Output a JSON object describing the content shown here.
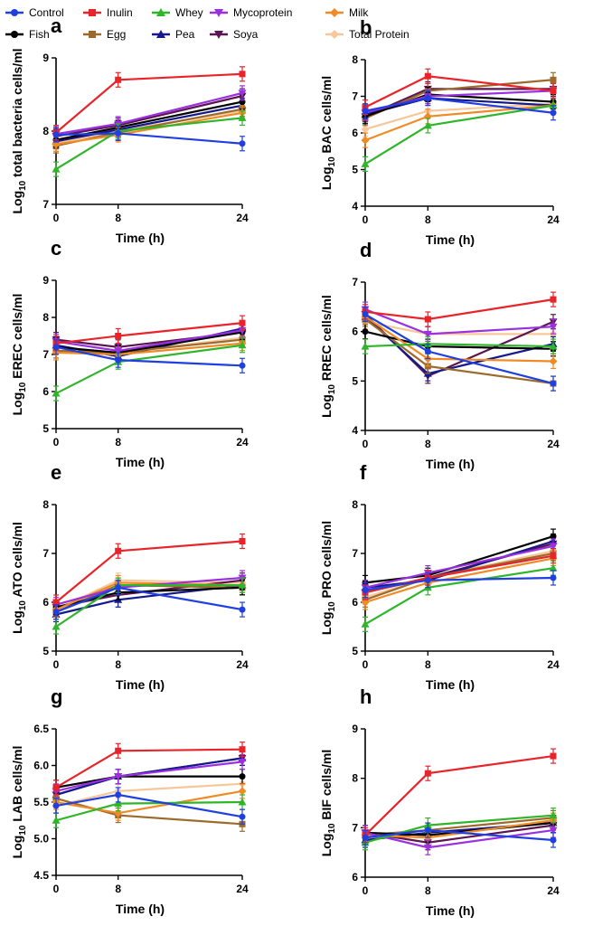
{
  "legend": [
    {
      "name": "Control",
      "color": "#1f3fe0",
      "marker": "circle"
    },
    {
      "name": "Inulin",
      "color": "#e8242a",
      "marker": "square"
    },
    {
      "name": "Whey",
      "color": "#2fb52a",
      "marker": "triangle-up"
    },
    {
      "name": "Mycoprotein",
      "color": "#9b30e0",
      "marker": "triangle-down"
    },
    {
      "name": "Milk",
      "color": "#f08a24",
      "marker": "diamond"
    },
    {
      "name": "Fish",
      "color": "#000000",
      "marker": "circle"
    },
    {
      "name": "Egg",
      "color": "#9c6b2c",
      "marker": "square"
    },
    {
      "name": "Pea",
      "color": "#141a8c",
      "marker": "triangle-up"
    },
    {
      "name": "Soya",
      "color": "#5b1550",
      "marker": "triangle-down"
    },
    {
      "name": "Total Protein",
      "color": "#f7c79a",
      "marker": "diamond"
    }
  ],
  "chart_data": [
    {
      "panel": "a",
      "type": "line",
      "ylabel_prefix": "Log",
      "ylabel_sub": "10",
      "ylabel_rest": " total bacteria cells/ml",
      "xlabel": "Time (h)",
      "x": [
        0,
        8,
        24
      ],
      "ylim": [
        7,
        9
      ],
      "yticks": [
        7,
        8,
        9
      ],
      "series": [
        {
          "name": "Control",
          "values": [
            7.95,
            7.97,
            7.83
          ]
        },
        {
          "name": "Inulin",
          "values": [
            7.98,
            8.7,
            8.78
          ]
        },
        {
          "name": "Whey",
          "values": [
            7.48,
            8.0,
            8.18
          ]
        },
        {
          "name": "Mycoprotein",
          "values": [
            7.96,
            8.1,
            8.52
          ]
        },
        {
          "name": "Milk",
          "values": [
            7.82,
            7.95,
            8.25
          ]
        },
        {
          "name": "Fish",
          "values": [
            7.88,
            8.05,
            8.4
          ]
        },
        {
          "name": "Egg",
          "values": [
            7.8,
            7.98,
            8.3
          ]
        },
        {
          "name": "Pea",
          "values": [
            7.86,
            8.02,
            8.35
          ]
        },
        {
          "name": "Soya",
          "values": [
            7.93,
            8.08,
            8.48
          ]
        },
        {
          "name": "Total Protein",
          "values": [
            7.84,
            8.0,
            8.28
          ]
        }
      ]
    },
    {
      "panel": "b",
      "type": "line",
      "ylabel_prefix": "Log",
      "ylabel_sub": "10",
      "ylabel_rest": " BAC cells/ml",
      "xlabel": "Time (h)",
      "x": [
        0,
        8,
        24
      ],
      "ylim": [
        4,
        8
      ],
      "yticks": [
        4,
        5,
        6,
        7,
        8
      ],
      "series": [
        {
          "name": "Control",
          "values": [
            6.6,
            6.95,
            6.55
          ]
        },
        {
          "name": "Inulin",
          "values": [
            6.7,
            7.55,
            7.15
          ]
        },
        {
          "name": "Whey",
          "values": [
            5.15,
            6.2,
            6.75
          ]
        },
        {
          "name": "Mycoprotein",
          "values": [
            6.55,
            7.0,
            7.15
          ]
        },
        {
          "name": "Milk",
          "values": [
            5.8,
            6.45,
            6.75
          ]
        },
        {
          "name": "Fish",
          "values": [
            6.45,
            7.05,
            6.85
          ]
        },
        {
          "name": "Egg",
          "values": [
            6.4,
            7.15,
            7.45
          ]
        },
        {
          "name": "Pea",
          "values": [
            6.5,
            6.95,
            6.75
          ]
        },
        {
          "name": "Soya",
          "values": [
            6.45,
            7.2,
            7.2
          ]
        },
        {
          "name": "Total Protein",
          "values": [
            6.1,
            6.6,
            6.8
          ]
        }
      ]
    },
    {
      "panel": "c",
      "type": "line",
      "ylabel_prefix": "Log",
      "ylabel_sub": "10",
      "ylabel_rest": " EREC cells/ml",
      "xlabel": "Time (h)",
      "x": [
        0,
        8,
        24
      ],
      "ylim": [
        5,
        9
      ],
      "yticks": [
        5,
        6,
        7,
        8,
        9
      ],
      "series": [
        {
          "name": "Control",
          "values": [
            7.2,
            6.85,
            6.7
          ]
        },
        {
          "name": "Inulin",
          "values": [
            7.3,
            7.5,
            7.85
          ]
        },
        {
          "name": "Whey",
          "values": [
            5.95,
            6.8,
            7.25
          ]
        },
        {
          "name": "Mycoprotein",
          "values": [
            7.35,
            7.1,
            7.65
          ]
        },
        {
          "name": "Milk",
          "values": [
            7.05,
            7.0,
            7.3
          ]
        },
        {
          "name": "Fish",
          "values": [
            7.2,
            7.05,
            7.6
          ]
        },
        {
          "name": "Egg",
          "values": [
            7.1,
            7.05,
            7.4
          ]
        },
        {
          "name": "Pea",
          "values": [
            7.25,
            6.95,
            7.7
          ]
        },
        {
          "name": "Soya",
          "values": [
            7.4,
            7.2,
            7.6
          ]
        },
        {
          "name": "Total Protein",
          "values": [
            7.1,
            7.05,
            7.45
          ]
        }
      ]
    },
    {
      "panel": "d",
      "type": "line",
      "ylabel_prefix": "Log",
      "ylabel_sub": "10",
      "ylabel_rest": " RREC cells/ml",
      "xlabel": "Time (h)",
      "x": [
        0,
        8,
        24
      ],
      "ylim": [
        4,
        7
      ],
      "yticks": [
        4,
        5,
        6,
        7
      ],
      "series": [
        {
          "name": "Control",
          "values": [
            6.35,
            5.6,
            4.95
          ]
        },
        {
          "name": "Inulin",
          "values": [
            6.4,
            6.25,
            6.65
          ]
        },
        {
          "name": "Whey",
          "values": [
            5.7,
            5.75,
            5.7
          ]
        },
        {
          "name": "Mycoprotein",
          "values": [
            6.45,
            5.95,
            6.1
          ]
        },
        {
          "name": "Milk",
          "values": [
            6.3,
            5.45,
            5.4
          ]
        },
        {
          "name": "Fish",
          "values": [
            6.0,
            5.7,
            5.65
          ]
        },
        {
          "name": "Egg",
          "values": [
            6.25,
            5.3,
            4.95
          ]
        },
        {
          "name": "Pea",
          "values": [
            6.3,
            5.15,
            5.75
          ]
        },
        {
          "name": "Soya",
          "values": [
            6.35,
            5.1,
            6.2
          ]
        },
        {
          "name": "Total Protein",
          "values": [
            6.2,
            5.95,
            5.95
          ]
        }
      ]
    },
    {
      "panel": "e",
      "type": "line",
      "ylabel_prefix": "Log",
      "ylabel_sub": "10",
      "ylabel_rest": " ATO cells/ml",
      "xlabel": "Time (h)",
      "x": [
        0,
        8,
        24
      ],
      "ylim": [
        5,
        8
      ],
      "yticks": [
        5,
        6,
        7,
        8
      ],
      "series": [
        {
          "name": "Control",
          "values": [
            5.8,
            6.3,
            5.85
          ]
        },
        {
          "name": "Inulin",
          "values": [
            6.0,
            7.05,
            7.25
          ]
        },
        {
          "name": "Whey",
          "values": [
            5.5,
            6.35,
            6.35
          ]
        },
        {
          "name": "Mycoprotein",
          "values": [
            5.95,
            6.3,
            6.5
          ]
        },
        {
          "name": "Milk",
          "values": [
            5.85,
            6.4,
            6.35
          ]
        },
        {
          "name": "Fish",
          "values": [
            5.9,
            6.2,
            6.3
          ]
        },
        {
          "name": "Egg",
          "values": [
            5.8,
            6.35,
            6.3
          ]
        },
        {
          "name": "Pea",
          "values": [
            5.75,
            6.05,
            6.35
          ]
        },
        {
          "name": "Soya",
          "values": [
            5.9,
            6.15,
            6.45
          ]
        },
        {
          "name": "Total Protein",
          "values": [
            5.85,
            6.45,
            6.4
          ]
        }
      ]
    },
    {
      "panel": "f",
      "type": "line",
      "ylabel_prefix": "Log",
      "ylabel_sub": "10",
      "ylabel_rest": " PRO cells/ml",
      "xlabel": "Time (h)",
      "x": [
        0,
        8,
        24
      ],
      "ylim": [
        5,
        8
      ],
      "yticks": [
        5,
        6,
        7,
        8
      ],
      "series": [
        {
          "name": "Control",
          "values": [
            6.25,
            6.45,
            6.5
          ]
        },
        {
          "name": "Inulin",
          "values": [
            6.2,
            6.5,
            6.95
          ]
        },
        {
          "name": "Whey",
          "values": [
            5.55,
            6.3,
            6.7
          ]
        },
        {
          "name": "Mycoprotein",
          "values": [
            6.3,
            6.6,
            7.15
          ]
        },
        {
          "name": "Milk",
          "values": [
            6.0,
            6.4,
            6.9
          ]
        },
        {
          "name": "Fish",
          "values": [
            6.4,
            6.55,
            7.35
          ]
        },
        {
          "name": "Egg",
          "values": [
            6.05,
            6.5,
            7.0
          ]
        },
        {
          "name": "Pea",
          "values": [
            6.3,
            6.45,
            7.25
          ]
        },
        {
          "name": "Soya",
          "values": [
            6.2,
            6.5,
            7.2
          ]
        },
        {
          "name": "Total Protein",
          "values": [
            6.1,
            6.5,
            7.05
          ]
        }
      ]
    },
    {
      "panel": "g",
      "type": "line",
      "ylabel_prefix": "Log",
      "ylabel_sub": "10",
      "ylabel_rest": " LAB cells/ml",
      "xlabel": "Time (h)",
      "x": [
        0,
        8,
        24
      ],
      "ylim": [
        4.5,
        6.5
      ],
      "yticks": [
        4.5,
        5.0,
        5.5,
        6.0,
        6.5
      ],
      "series": [
        {
          "name": "Control",
          "values": [
            5.45,
            5.6,
            5.3
          ]
        },
        {
          "name": "Inulin",
          "values": [
            5.7,
            6.2,
            6.22
          ]
        },
        {
          "name": "Whey",
          "values": [
            5.25,
            5.48,
            5.5
          ]
        },
        {
          "name": "Mycoprotein",
          "values": [
            5.65,
            5.85,
            6.05
          ]
        },
        {
          "name": "Milk",
          "values": [
            5.5,
            5.35,
            5.65
          ]
        },
        {
          "name": "Fish",
          "values": [
            5.7,
            5.85,
            5.85
          ]
        },
        {
          "name": "Egg",
          "values": [
            5.55,
            5.32,
            5.2
          ]
        },
        {
          "name": "Pea",
          "values": [
            5.6,
            5.85,
            6.1
          ]
        },
        {
          "name": "Soya",
          "values": [
            5.6,
            5.85,
            6.1
          ]
        },
        {
          "name": "Total Protein",
          "values": [
            5.45,
            5.65,
            5.75
          ]
        }
      ]
    },
    {
      "panel": "h",
      "type": "line",
      "ylabel_prefix": "Log",
      "ylabel_sub": "10",
      "ylabel_rest": " BIF cells/ml",
      "xlabel": "Time (h)",
      "x": [
        0,
        8,
        24
      ],
      "ylim": [
        6,
        9
      ],
      "yticks": [
        6,
        7,
        8,
        9
      ],
      "series": [
        {
          "name": "Control",
          "values": [
            6.8,
            6.95,
            6.75
          ]
        },
        {
          "name": "Inulin",
          "values": [
            6.85,
            8.1,
            8.45
          ]
        },
        {
          "name": "Whey",
          "values": [
            6.7,
            7.05,
            7.25
          ]
        },
        {
          "name": "Mycoprotein",
          "values": [
            6.9,
            6.6,
            6.95
          ]
        },
        {
          "name": "Milk",
          "values": [
            6.85,
            6.8,
            7.15
          ]
        },
        {
          "name": "Fish",
          "values": [
            6.9,
            6.85,
            7.1
          ]
        },
        {
          "name": "Egg",
          "values": [
            6.85,
            6.95,
            7.2
          ]
        },
        {
          "name": "Pea",
          "values": [
            6.75,
            6.9,
            7.1
          ]
        },
        {
          "name": "Soya",
          "values": [
            6.9,
            6.7,
            7.05
          ]
        },
        {
          "name": "Total Protein",
          "values": [
            6.8,
            6.85,
            7.1
          ]
        }
      ]
    }
  ]
}
